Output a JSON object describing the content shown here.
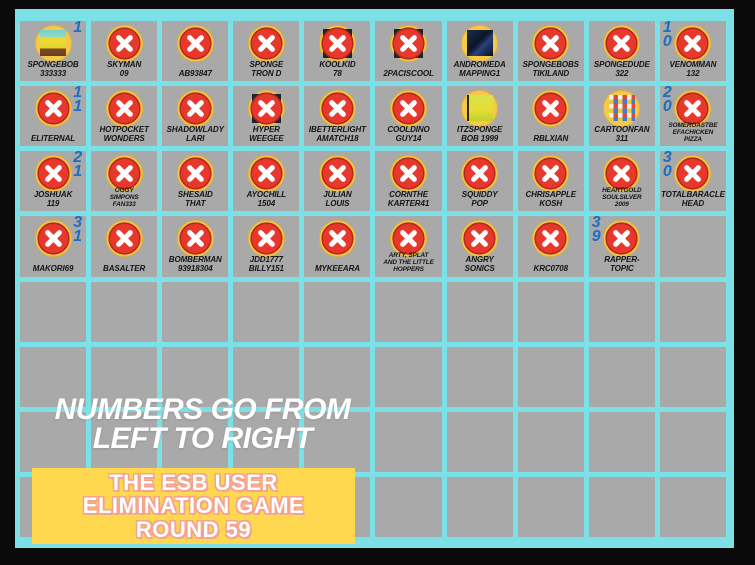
{
  "colors": {
    "frame": "#0a0a0a",
    "panel_cyan": "#7ce1e6",
    "cell_gray": "#a9a9a9",
    "coin_yellow": "#f7c94b",
    "x_red": "#e8382c",
    "x_ring": "#b5281e",
    "number_blue": "#1d6ec0",
    "banner_yellow": "#ffd84f",
    "banner_outline": "#f5a28e"
  },
  "icons": {
    "eliminated": "x-mark-icon",
    "avatar_base": "coin-circle-icon"
  },
  "note": {
    "text": "NUMBERS GO FROM\nLEFT TO RIGHT"
  },
  "title_box": {
    "line1": "THE ESB USER",
    "line2": "ELIMINATION GAME",
    "line3": "ROUND 59"
  },
  "board": {
    "columns": 10,
    "rows_total": 8,
    "rows": [
      [
        {
          "name": "SPONGEBOB\n333333",
          "status": "active",
          "avatar": "spongebob",
          "number": "1",
          "number_side": "right"
        },
        {
          "name": "SKYMAN\n09",
          "status": "eliminated",
          "avatar": "x"
        },
        {
          "name": "AB93847",
          "status": "eliminated",
          "avatar": "x"
        },
        {
          "name": "SPONGE\nTRON D",
          "status": "eliminated",
          "avatar": "x"
        },
        {
          "name": "KOOLKID\n78",
          "status": "eliminated",
          "avatar": "x-img"
        },
        {
          "name": "2PACISCOOL",
          "status": "eliminated",
          "avatar": "x-img"
        },
        {
          "name": "ANDROMEDA\nMAPPING1",
          "status": "active",
          "avatar": "andromeda"
        },
        {
          "name": "SPONGEBOBS\nTIKILAND",
          "status": "eliminated",
          "avatar": "x"
        },
        {
          "name": "SPONGEDUDE\n322",
          "status": "eliminated",
          "avatar": "x"
        },
        {
          "name": "VENOMMAN\n132",
          "status": "eliminated",
          "avatar": "x",
          "number": "1\n0",
          "number_side": "left"
        }
      ],
      [
        {
          "name": "ELITERNAL",
          "status": "eliminated",
          "avatar": "x",
          "number": "1\n1",
          "number_side": "right"
        },
        {
          "name": "HOTPOCKET\nWONDERS",
          "status": "eliminated",
          "avatar": "x"
        },
        {
          "name": "SHADOWLADY\nLARI",
          "status": "eliminated",
          "avatar": "x"
        },
        {
          "name": "HYPER\nWEEGEE",
          "status": "eliminated",
          "avatar": "x-img"
        },
        {
          "name": "IBETTERLIGHT\nAMATCH18",
          "status": "eliminated",
          "avatar": "x"
        },
        {
          "name": "COOLDINO\nGUY14",
          "status": "eliminated",
          "avatar": "x"
        },
        {
          "name": "ITZSPONGE\nBOB 1999",
          "status": "active",
          "avatar": "itzsponge"
        },
        {
          "name": "RBLXIAN",
          "status": "eliminated",
          "avatar": "x"
        },
        {
          "name": "CARTOONFAN\n311",
          "status": "active",
          "avatar": "cartoonfan"
        },
        {
          "name": "SOMEROASTBE\nEFACHICKEN\nPIZZA",
          "status": "eliminated",
          "avatar": "x",
          "number": "2\n0",
          "number_side": "left"
        }
      ],
      [
        {
          "name": "JOSHUAK\n119",
          "status": "eliminated",
          "avatar": "x",
          "number": "2\n1",
          "number_side": "right"
        },
        {
          "name": "OGGY\nSIMPONS\nFAN333",
          "status": "eliminated",
          "avatar": "x"
        },
        {
          "name": "SHESAID\nTHAT",
          "status": "eliminated",
          "avatar": "x"
        },
        {
          "name": "AYOCHILL\n1504",
          "status": "eliminated",
          "avatar": "x"
        },
        {
          "name": "JULIAN\nLOUIS",
          "status": "eliminated",
          "avatar": "x"
        },
        {
          "name": "CORNTHE\nKARTER41",
          "status": "eliminated",
          "avatar": "x"
        },
        {
          "name": "SQUIDDY\nPOP",
          "status": "eliminated",
          "avatar": "x"
        },
        {
          "name": "CHRISAPPLE\nKOSH",
          "status": "eliminated",
          "avatar": "x"
        },
        {
          "name": "HEARTGOLD\nSOULSILVER\n2009",
          "status": "eliminated",
          "avatar": "x"
        },
        {
          "name": "TOTALBARACLE\nHEAD",
          "status": "eliminated",
          "avatar": "x",
          "number": "3\n0",
          "number_side": "left"
        }
      ],
      [
        {
          "name": "MAKORI69",
          "status": "eliminated",
          "avatar": "x",
          "number": "3\n1",
          "number_side": "right"
        },
        {
          "name": "BASALTER",
          "status": "eliminated",
          "avatar": "x"
        },
        {
          "name": "BOMBERMAN\n93918304",
          "status": "eliminated",
          "avatar": "x"
        },
        {
          "name": "JDD1777\nBILLY151",
          "status": "eliminated",
          "avatar": "x"
        },
        {
          "name": "MYKEEARA",
          "status": "eliminated",
          "avatar": "x"
        },
        {
          "name": "ARTY, SPLAT\nAND THE LITTLE\nHOPPERS",
          "status": "eliminated",
          "avatar": "x"
        },
        {
          "name": "ANGRY\nSONICS",
          "status": "eliminated",
          "avatar": "x"
        },
        {
          "name": "KRC0708",
          "status": "eliminated",
          "avatar": "x"
        },
        {
          "name": "RAPPER-\nTOPIC",
          "status": "eliminated",
          "avatar": "x",
          "number": "3\n9",
          "number_side": "left"
        }
      ]
    ]
  }
}
